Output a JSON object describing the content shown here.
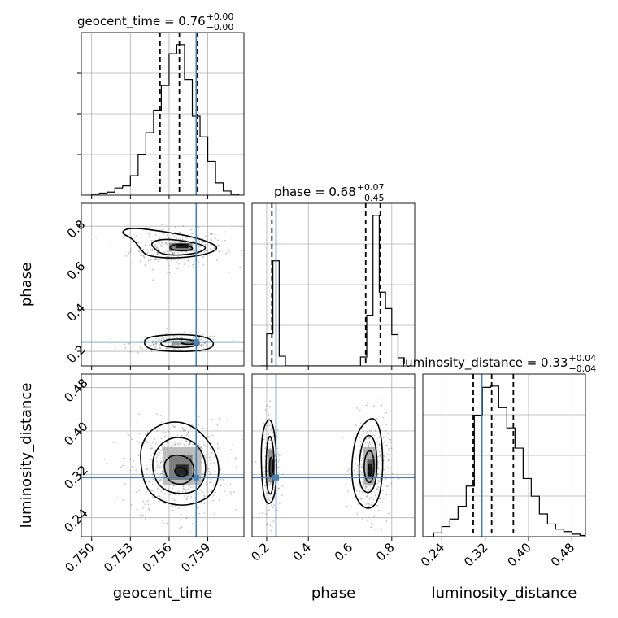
{
  "chart_data": {
    "type": "corner",
    "parameters": [
      "geocent_time",
      "phase",
      "luminosity_distance"
    ],
    "titles": [
      {
        "param": "geocent_time",
        "median": "0.76",
        "plus": "+0.00",
        "minus": "−0.00"
      },
      {
        "param": "phase",
        "median": "0.68",
        "plus": "+0.07",
        "minus": "−0.45"
      },
      {
        "param": "luminosity_distance",
        "median": "0.33",
        "plus": "+0.04",
        "minus": "−0.04"
      }
    ],
    "axes": {
      "geocent_time": {
        "range": [
          0.7492,
          0.7618
        ],
        "ticks": [
          0.75,
          0.753,
          0.756,
          0.759
        ],
        "tick_labels": [
          "0.750",
          "0.753",
          "0.756",
          "0.759"
        ]
      },
      "phase": {
        "range": [
          0.13,
          0.91
        ],
        "ticks": [
          0.2,
          0.4,
          0.6,
          0.8
        ],
        "tick_labels": [
          "0.2",
          "0.4",
          "0.6",
          "0.8"
        ]
      },
      "luminosity_distance": {
        "range": [
          0.205,
          0.505
        ],
        "ticks": [
          0.24,
          0.32,
          0.4,
          0.48
        ],
        "tick_labels": [
          "0.24",
          "0.32",
          "0.40",
          "0.48"
        ]
      }
    },
    "injection": {
      "geocent_time": 0.7581,
      "phase": 0.245,
      "luminosity_distance": 0.314
    },
    "quantiles": {
      "geocent_time": [
        0.7553,
        0.7568,
        0.7582
      ],
      "phase": [
        0.225,
        0.675,
        0.745
      ],
      "luminosity_distance": [
        0.298,
        0.332,
        0.372
      ]
    },
    "hist_geocent_time": {
      "edges": [
        0.75,
        0.7506,
        0.7512,
        0.7518,
        0.7524,
        0.753,
        0.7536,
        0.7542,
        0.7548,
        0.7554,
        0.756,
        0.7566,
        0.7572,
        0.7578,
        0.7584,
        0.759,
        0.7596,
        0.7602,
        0.7608,
        0.7614
      ],
      "counts": [
        1,
        2,
        3,
        7,
        9,
        19,
        40,
        61,
        83,
        107,
        138,
        147,
        113,
        77,
        57,
        33,
        12,
        4,
        1
      ]
    },
    "hist_phase": {
      "edges": [
        0.17,
        0.2,
        0.23,
        0.26,
        0.29,
        0.32,
        0.35,
        0.38,
        0.41,
        0.44,
        0.47,
        0.5,
        0.53,
        0.56,
        0.59,
        0.62,
        0.65,
        0.68,
        0.71,
        0.74,
        0.77,
        0.8,
        0.83,
        0.86
      ],
      "counts": [
        0,
        43,
        141,
        13,
        0,
        0,
        0,
        0,
        0,
        0,
        0,
        0,
        0,
        0,
        0,
        0,
        12,
        68,
        202,
        99,
        77,
        42,
        11,
        2
      ]
    },
    "hist_luminosity_distance": {
      "edges": [
        0.21,
        0.225,
        0.24,
        0.255,
        0.27,
        0.285,
        0.3,
        0.315,
        0.33,
        0.345,
        0.36,
        0.375,
        0.39,
        0.405,
        0.42,
        0.435,
        0.45,
        0.465,
        0.48,
        0.495,
        0.505
      ],
      "counts": [
        0,
        3,
        8,
        14,
        24,
        40,
        96,
        118,
        119,
        102,
        86,
        70,
        46,
        32,
        18,
        10,
        6,
        4,
        2,
        1
      ]
    },
    "blobs": [
      {
        "xp": "geocent_time",
        "yp": "phase",
        "cx": 0.7566,
        "cy": 0.695,
        "sx": 0.0018,
        "sy": 0.045,
        "n": 320
      },
      {
        "xp": "geocent_time",
        "yp": "phase",
        "cx": 0.7566,
        "cy": 0.238,
        "sx": 0.0018,
        "sy": 0.022,
        "n": 180
      },
      {
        "xp": "geocent_time",
        "yp": "luminosity_distance",
        "cx": 0.7567,
        "cy": 0.33,
        "sx": 0.0019,
        "sy": 0.045,
        "n": 520
      },
      {
        "xp": "phase",
        "yp": "luminosity_distance",
        "cx": 0.222,
        "cy": 0.335,
        "sx": 0.02,
        "sy": 0.05,
        "n": 200
      },
      {
        "xp": "phase",
        "yp": "luminosity_distance",
        "cx": 0.7,
        "cy": 0.33,
        "sx": 0.045,
        "sy": 0.045,
        "n": 320
      }
    ],
    "contours": [
      {
        "xp": "geocent_time",
        "yp": "phase",
        "levels": [
          [
            [
              0.7538,
              0.69
            ],
            [
              0.7543,
              0.655
            ],
            [
              0.7566,
              0.645
            ],
            [
              0.759,
              0.665
            ],
            [
              0.76,
              0.7
            ],
            [
              0.7582,
              0.745
            ],
            [
              0.7556,
              0.775
            ],
            [
              0.753,
              0.795
            ],
            [
              0.7522,
              0.77
            ],
            [
              0.7532,
              0.74
            ]
          ],
          [
            [
              0.755,
              0.685
            ],
            [
              0.7555,
              0.665
            ],
            [
              0.7568,
              0.66
            ],
            [
              0.7585,
              0.675
            ],
            [
              0.759,
              0.705
            ],
            [
              0.7572,
              0.73
            ],
            [
              0.7555,
              0.74
            ],
            [
              0.7545,
              0.72
            ]
          ],
          [
            [
              0.756,
              0.69
            ],
            [
              0.757,
              0.68
            ],
            [
              0.758,
              0.69
            ],
            [
              0.7574,
              0.712
            ],
            [
              0.7562,
              0.713
            ]
          ]
        ]
      },
      {
        "xp": "geocent_time",
        "yp": "phase",
        "levels": [
          [
            [
              0.754,
              0.238
            ],
            [
              0.7545,
              0.208
            ],
            [
              0.7566,
              0.197
            ],
            [
              0.759,
              0.205
            ],
            [
              0.7596,
              0.238
            ],
            [
              0.7588,
              0.273
            ],
            [
              0.7566,
              0.283
            ],
            [
              0.7543,
              0.27
            ]
          ],
          [
            [
              0.7552,
              0.238
            ],
            [
              0.7558,
              0.22
            ],
            [
              0.7575,
              0.218
            ],
            [
              0.7585,
              0.235
            ],
            [
              0.7578,
              0.257
            ],
            [
              0.756,
              0.26
            ]
          ],
          [
            [
              0.7568,
              0.24
            ],
            [
              0.7574,
              0.232
            ],
            [
              0.7582,
              0.238
            ],
            [
              0.7576,
              0.248
            ]
          ]
        ]
      },
      {
        "xp": "geocent_time",
        "yp": "luminosity_distance",
        "levels": [
          [
            [
              0.7537,
              0.35
            ],
            [
              0.7542,
              0.29
            ],
            [
              0.7558,
              0.265
            ],
            [
              0.7578,
              0.262
            ],
            [
              0.7596,
              0.285
            ],
            [
              0.76,
              0.345
            ],
            [
              0.7586,
              0.398
            ],
            [
              0.7568,
              0.42
            ],
            [
              0.755,
              0.41
            ],
            [
              0.754,
              0.385
            ]
          ],
          [
            [
              0.7546,
              0.34
            ],
            [
              0.7551,
              0.298
            ],
            [
              0.7566,
              0.282
            ],
            [
              0.7584,
              0.29
            ],
            [
              0.759,
              0.335
            ],
            [
              0.7582,
              0.378
            ],
            [
              0.7566,
              0.392
            ],
            [
              0.7552,
              0.375
            ]
          ],
          [
            [
              0.7556,
              0.33
            ],
            [
              0.756,
              0.305
            ],
            [
              0.7572,
              0.3
            ],
            [
              0.758,
              0.318
            ],
            [
              0.7578,
              0.348
            ],
            [
              0.7565,
              0.358
            ],
            [
              0.7557,
              0.347
            ]
          ],
          [
            [
              0.7564,
              0.322
            ],
            [
              0.757,
              0.314
            ],
            [
              0.7575,
              0.322
            ],
            [
              0.7571,
              0.333
            ],
            [
              0.7565,
              0.332
            ]
          ]
        ]
      },
      {
        "xp": "phase",
        "yp": "luminosity_distance",
        "levels": [
          [
            [
              0.173,
              0.345
            ],
            [
              0.182,
              0.285
            ],
            [
              0.205,
              0.262
            ],
            [
              0.238,
              0.275
            ],
            [
              0.25,
              0.33
            ],
            [
              0.24,
              0.395
            ],
            [
              0.218,
              0.425
            ],
            [
              0.19,
              0.412
            ],
            [
              0.176,
              0.385
            ]
          ],
          [
            [
              0.195,
              0.33
            ],
            [
              0.203,
              0.29
            ],
            [
              0.222,
              0.28
            ],
            [
              0.235,
              0.31
            ],
            [
              0.235,
              0.365
            ],
            [
              0.218,
              0.395
            ],
            [
              0.202,
              0.38
            ]
          ],
          [
            [
              0.212,
              0.328
            ],
            [
              0.22,
              0.31
            ],
            [
              0.23,
              0.325
            ],
            [
              0.228,
              0.35
            ],
            [
              0.216,
              0.352
            ]
          ]
        ]
      },
      {
        "xp": "phase",
        "yp": "luminosity_distance",
        "levels": [
          [
            [
              0.605,
              0.34
            ],
            [
              0.615,
              0.29
            ],
            [
              0.65,
              0.262
            ],
            [
              0.7,
              0.255
            ],
            [
              0.74,
              0.275
            ],
            [
              0.76,
              0.33
            ],
            [
              0.75,
              0.395
            ],
            [
              0.72,
              0.425
            ],
            [
              0.68,
              0.42
            ],
            [
              0.63,
              0.395
            ]
          ],
          [
            [
              0.64,
              0.33
            ],
            [
              0.65,
              0.295
            ],
            [
              0.69,
              0.283
            ],
            [
              0.722,
              0.3
            ],
            [
              0.732,
              0.345
            ],
            [
              0.718,
              0.385
            ],
            [
              0.685,
              0.395
            ],
            [
              0.655,
              0.375
            ]
          ],
          [
            [
              0.665,
              0.33
            ],
            [
              0.68,
              0.305
            ],
            [
              0.705,
              0.305
            ],
            [
              0.718,
              0.33
            ],
            [
              0.71,
              0.36
            ],
            [
              0.688,
              0.365
            ],
            [
              0.672,
              0.352
            ]
          ],
          [
            [
              0.685,
              0.325
            ],
            [
              0.695,
              0.315
            ],
            [
              0.708,
              0.325
            ],
            [
              0.702,
              0.34
            ],
            [
              0.69,
              0.338
            ]
          ]
        ]
      }
    ],
    "density_cells": [
      {
        "xp": "geocent_time",
        "yp": "phase",
        "x": 0.756,
        "y": 0.68,
        "w": 0.0018,
        "h": 0.04,
        "shade": 0.55
      },
      {
        "xp": "geocent_time",
        "yp": "phase",
        "x": 0.7565,
        "y": 0.695,
        "w": 0.001,
        "h": 0.022,
        "shade": 0.95
      },
      {
        "xp": "geocent_time",
        "yp": "phase",
        "x": 0.7562,
        "y": 0.23,
        "w": 0.0022,
        "h": 0.02,
        "shade": 0.45
      },
      {
        "xp": "geocent_time",
        "yp": "luminosity_distance",
        "x": 0.7555,
        "y": 0.3,
        "w": 0.003,
        "h": 0.07,
        "shade": 0.3
      },
      {
        "xp": "geocent_time",
        "yp": "luminosity_distance",
        "x": 0.756,
        "y": 0.31,
        "w": 0.0018,
        "h": 0.045,
        "shade": 0.55
      },
      {
        "xp": "geocent_time",
        "yp": "luminosity_distance",
        "x": 0.7565,
        "y": 0.318,
        "w": 0.001,
        "h": 0.02,
        "shade": 0.9
      },
      {
        "xp": "phase",
        "yp": "luminosity_distance",
        "x": 0.205,
        "y": 0.305,
        "w": 0.03,
        "h": 0.06,
        "shade": 0.45
      },
      {
        "xp": "phase",
        "yp": "luminosity_distance",
        "x": 0.212,
        "y": 0.318,
        "w": 0.016,
        "h": 0.03,
        "shade": 0.75
      },
      {
        "xp": "phase",
        "yp": "luminosity_distance",
        "x": 0.665,
        "y": 0.3,
        "w": 0.06,
        "h": 0.07,
        "shade": 0.35
      },
      {
        "xp": "phase",
        "yp": "luminosity_distance",
        "x": 0.682,
        "y": 0.312,
        "w": 0.03,
        "h": 0.035,
        "shade": 0.7
      },
      {
        "xp": "phase",
        "yp": "luminosity_distance",
        "x": 0.69,
        "y": 0.318,
        "w": 0.015,
        "h": 0.018,
        "shade": 0.95
      }
    ],
    "colors": {
      "injection": "#4682b4",
      "hist": "#000000",
      "grid": "#b0b0b0",
      "points": "#555555"
    },
    "xlabels": [
      "geocent_time",
      "phase",
      "luminosity_distance"
    ],
    "ylabels": [
      "phase",
      "luminosity_distance"
    ],
    "grid": true
  }
}
